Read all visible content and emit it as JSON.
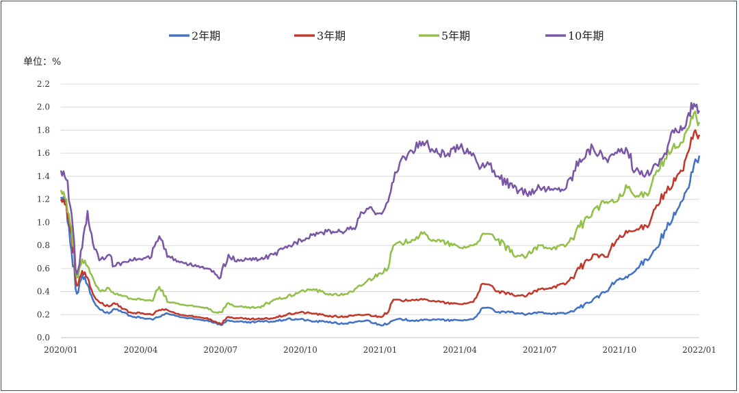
{
  "chart_data": {
    "type": "line",
    "title": "",
    "xlabel": "",
    "ylabel": "单位：%",
    "ylim": [
      0,
      2.2
    ],
    "yticks": [
      "0.0",
      "0.2",
      "0.4",
      "0.6",
      "0.8",
      "1.0",
      "1.2",
      "1.4",
      "1.6",
      "1.8",
      "2.0",
      "2.2"
    ],
    "xticks": [
      "2020/01",
      "2020/04",
      "2020/07",
      "2020/10",
      "2021/01",
      "2021/04",
      "2021/07",
      "2021/10",
      "2022/01"
    ],
    "xrange_months": [
      0,
      24
    ],
    "grid": "horizontal",
    "legend": "top",
    "series": [
      {
        "name": "2年期",
        "color": "#4472C4",
        "points": [
          [
            0,
            1.22
          ],
          [
            0.2,
            1.18
          ],
          [
            0.4,
            0.75
          ],
          [
            0.6,
            0.38
          ],
          [
            0.8,
            0.55
          ],
          [
            1.0,
            0.46
          ],
          [
            1.2,
            0.33
          ],
          [
            1.5,
            0.24
          ],
          [
            1.8,
            0.21
          ],
          [
            2.0,
            0.25
          ],
          [
            2.3,
            0.22
          ],
          [
            2.6,
            0.19
          ],
          [
            3.0,
            0.17
          ],
          [
            3.4,
            0.16
          ],
          [
            3.7,
            0.18
          ],
          [
            4.0,
            0.21
          ],
          [
            4.3,
            0.19
          ],
          [
            4.7,
            0.17
          ],
          [
            5.0,
            0.16
          ],
          [
            5.5,
            0.15
          ],
          [
            5.8,
            0.13
          ],
          [
            6.0,
            0.11
          ],
          [
            6.3,
            0.15
          ],
          [
            6.6,
            0.14
          ],
          [
            7.0,
            0.13
          ],
          [
            7.5,
            0.14
          ],
          [
            8.0,
            0.14
          ],
          [
            8.5,
            0.16
          ],
          [
            9.0,
            0.16
          ],
          [
            9.5,
            0.14
          ],
          [
            10.0,
            0.14
          ],
          [
            10.5,
            0.12
          ],
          [
            11.0,
            0.13
          ],
          [
            11.5,
            0.15
          ],
          [
            12.0,
            0.11
          ],
          [
            12.3,
            0.12
          ],
          [
            12.5,
            0.15
          ],
          [
            12.8,
            0.16
          ],
          [
            13.2,
            0.15
          ],
          [
            13.6,
            0.15
          ],
          [
            14.0,
            0.16
          ],
          [
            14.5,
            0.15
          ],
          [
            15.0,
            0.15
          ],
          [
            15.5,
            0.16
          ],
          [
            15.8,
            0.25
          ],
          [
            16.1,
            0.26
          ],
          [
            16.4,
            0.22
          ],
          [
            17.0,
            0.22
          ],
          [
            17.5,
            0.2
          ],
          [
            18.0,
            0.22
          ],
          [
            18.5,
            0.21
          ],
          [
            19.0,
            0.21
          ],
          [
            19.5,
            0.26
          ],
          [
            20.0,
            0.33
          ],
          [
            20.5,
            0.4
          ],
          [
            20.9,
            0.5
          ],
          [
            21.3,
            0.52
          ],
          [
            21.6,
            0.58
          ],
          [
            22.0,
            0.68
          ],
          [
            22.4,
            0.78
          ],
          [
            22.7,
            0.93
          ],
          [
            23.0,
            1.03
          ],
          [
            23.2,
            1.12
          ],
          [
            23.4,
            1.2
          ],
          [
            23.6,
            1.3
          ],
          [
            23.8,
            1.5
          ],
          [
            24.0,
            1.58
          ]
        ]
      },
      {
        "name": "3年期",
        "color": "#C0392B",
        "points": [
          [
            0,
            1.2
          ],
          [
            0.2,
            1.15
          ],
          [
            0.4,
            0.9
          ],
          [
            0.6,
            0.45
          ],
          [
            0.8,
            0.58
          ],
          [
            1.0,
            0.52
          ],
          [
            1.2,
            0.38
          ],
          [
            1.5,
            0.3
          ],
          [
            1.8,
            0.27
          ],
          [
            2.0,
            0.3
          ],
          [
            2.3,
            0.25
          ],
          [
            2.6,
            0.22
          ],
          [
            3.0,
            0.21
          ],
          [
            3.4,
            0.2
          ],
          [
            3.7,
            0.24
          ],
          [
            4.0,
            0.24
          ],
          [
            4.3,
            0.21
          ],
          [
            4.7,
            0.19
          ],
          [
            5.0,
            0.18
          ],
          [
            5.5,
            0.17
          ],
          [
            5.8,
            0.14
          ],
          [
            6.0,
            0.12
          ],
          [
            6.3,
            0.18
          ],
          [
            6.6,
            0.17
          ],
          [
            7.0,
            0.16
          ],
          [
            7.5,
            0.16
          ],
          [
            8.0,
            0.17
          ],
          [
            8.5,
            0.2
          ],
          [
            9.0,
            0.22
          ],
          [
            9.5,
            0.21
          ],
          [
            10.0,
            0.19
          ],
          [
            10.5,
            0.18
          ],
          [
            11.0,
            0.19
          ],
          [
            11.5,
            0.2
          ],
          [
            12.0,
            0.18
          ],
          [
            12.3,
            0.22
          ],
          [
            12.5,
            0.33
          ],
          [
            12.8,
            0.32
          ],
          [
            13.2,
            0.33
          ],
          [
            13.6,
            0.33
          ],
          [
            14.0,
            0.32
          ],
          [
            14.5,
            0.3
          ],
          [
            15.0,
            0.29
          ],
          [
            15.5,
            0.31
          ],
          [
            15.8,
            0.46
          ],
          [
            16.1,
            0.46
          ],
          [
            16.4,
            0.4
          ],
          [
            17.0,
            0.37
          ],
          [
            17.5,
            0.36
          ],
          [
            18.0,
            0.42
          ],
          [
            18.5,
            0.44
          ],
          [
            19.0,
            0.47
          ],
          [
            19.5,
            0.6
          ],
          [
            20.0,
            0.72
          ],
          [
            20.5,
            0.7
          ],
          [
            20.9,
            0.85
          ],
          [
            21.3,
            0.91
          ],
          [
            21.6,
            0.93
          ],
          [
            22.0,
            0.97
          ],
          [
            22.4,
            1.15
          ],
          [
            22.7,
            1.26
          ],
          [
            23.0,
            1.32
          ],
          [
            23.2,
            1.42
          ],
          [
            23.4,
            1.45
          ],
          [
            23.6,
            1.62
          ],
          [
            23.8,
            1.78
          ],
          [
            24.0,
            1.76
          ]
        ]
      },
      {
        "name": "5年期",
        "color": "#92C04B",
        "points": [
          [
            0,
            1.28
          ],
          [
            0.2,
            1.2
          ],
          [
            0.4,
            0.95
          ],
          [
            0.6,
            0.52
          ],
          [
            0.8,
            0.68
          ],
          [
            1.0,
            0.62
          ],
          [
            1.2,
            0.52
          ],
          [
            1.5,
            0.4
          ],
          [
            1.8,
            0.43
          ],
          [
            2.0,
            0.38
          ],
          [
            2.3,
            0.36
          ],
          [
            2.6,
            0.34
          ],
          [
            3.0,
            0.33
          ],
          [
            3.4,
            0.32
          ],
          [
            3.7,
            0.44
          ],
          [
            4.0,
            0.31
          ],
          [
            4.3,
            0.3
          ],
          [
            4.7,
            0.28
          ],
          [
            5.0,
            0.27
          ],
          [
            5.5,
            0.26
          ],
          [
            5.8,
            0.22
          ],
          [
            6.0,
            0.22
          ],
          [
            6.3,
            0.3
          ],
          [
            6.6,
            0.27
          ],
          [
            7.0,
            0.26
          ],
          [
            7.5,
            0.26
          ],
          [
            8.0,
            0.33
          ],
          [
            8.5,
            0.35
          ],
          [
            9.0,
            0.4
          ],
          [
            9.5,
            0.42
          ],
          [
            10.0,
            0.38
          ],
          [
            10.5,
            0.37
          ],
          [
            11.0,
            0.4
          ],
          [
            11.5,
            0.49
          ],
          [
            12.0,
            0.56
          ],
          [
            12.3,
            0.6
          ],
          [
            12.5,
            0.8
          ],
          [
            12.8,
            0.82
          ],
          [
            13.2,
            0.85
          ],
          [
            13.6,
            0.9
          ],
          [
            14.0,
            0.85
          ],
          [
            14.5,
            0.82
          ],
          [
            15.0,
            0.78
          ],
          [
            15.5,
            0.8
          ],
          [
            15.8,
            0.88
          ],
          [
            16.1,
            0.9
          ],
          [
            16.4,
            0.85
          ],
          [
            17.0,
            0.72
          ],
          [
            17.5,
            0.7
          ],
          [
            18.0,
            0.8
          ],
          [
            18.5,
            0.78
          ],
          [
            19.0,
            0.8
          ],
          [
            19.5,
            0.96
          ],
          [
            20.0,
            1.1
          ],
          [
            20.5,
            1.18
          ],
          [
            20.9,
            1.18
          ],
          [
            21.3,
            1.3
          ],
          [
            21.6,
            1.22
          ],
          [
            22.0,
            1.25
          ],
          [
            22.4,
            1.45
          ],
          [
            22.7,
            1.55
          ],
          [
            23.0,
            1.65
          ],
          [
            23.2,
            1.65
          ],
          [
            23.4,
            1.7
          ],
          [
            23.6,
            1.82
          ],
          [
            23.8,
            1.95
          ],
          [
            24.0,
            1.87
          ]
        ]
      },
      {
        "name": "10年期",
        "color": "#7B58A6",
        "points": [
          [
            0,
            1.45
          ],
          [
            0.2,
            1.37
          ],
          [
            0.4,
            1.08
          ],
          [
            0.6,
            0.55
          ],
          [
            0.8,
            0.78
          ],
          [
            1.0,
            1.1
          ],
          [
            1.2,
            0.82
          ],
          [
            1.5,
            0.68
          ],
          [
            1.8,
            0.72
          ],
          [
            2.0,
            0.62
          ],
          [
            2.3,
            0.65
          ],
          [
            2.6,
            0.68
          ],
          [
            3.0,
            0.68
          ],
          [
            3.4,
            0.7
          ],
          [
            3.7,
            0.88
          ],
          [
            4.0,
            0.7
          ],
          [
            4.3,
            0.68
          ],
          [
            4.7,
            0.65
          ],
          [
            5.0,
            0.62
          ],
          [
            5.5,
            0.6
          ],
          [
            5.8,
            0.55
          ],
          [
            6.0,
            0.52
          ],
          [
            6.3,
            0.72
          ],
          [
            6.6,
            0.66
          ],
          [
            7.0,
            0.68
          ],
          [
            7.5,
            0.68
          ],
          [
            8.0,
            0.72
          ],
          [
            8.5,
            0.78
          ],
          [
            9.0,
            0.85
          ],
          [
            9.5,
            0.9
          ],
          [
            10.0,
            0.92
          ],
          [
            10.5,
            0.92
          ],
          [
            11.0,
            0.95
          ],
          [
            11.5,
            1.12
          ],
          [
            12.0,
            1.08
          ],
          [
            12.3,
            1.18
          ],
          [
            12.5,
            1.35
          ],
          [
            12.8,
            1.55
          ],
          [
            13.2,
            1.62
          ],
          [
            13.6,
            1.7
          ],
          [
            14.0,
            1.62
          ],
          [
            14.5,
            1.58
          ],
          [
            15.0,
            1.65
          ],
          [
            15.5,
            1.6
          ],
          [
            15.8,
            1.48
          ],
          [
            16.1,
            1.5
          ],
          [
            16.4,
            1.4
          ],
          [
            17.0,
            1.3
          ],
          [
            17.5,
            1.25
          ],
          [
            18.0,
            1.3
          ],
          [
            18.5,
            1.28
          ],
          [
            19.0,
            1.3
          ],
          [
            19.5,
            1.55
          ],
          [
            20.0,
            1.65
          ],
          [
            20.5,
            1.55
          ],
          [
            20.9,
            1.6
          ],
          [
            21.3,
            1.62
          ],
          [
            21.6,
            1.45
          ],
          [
            22.0,
            1.42
          ],
          [
            22.4,
            1.5
          ],
          [
            22.7,
            1.6
          ],
          [
            23.0,
            1.8
          ],
          [
            23.2,
            1.78
          ],
          [
            23.4,
            1.82
          ],
          [
            23.6,
            1.95
          ],
          [
            23.8,
            2.03
          ],
          [
            24.0,
            1.97
          ]
        ]
      }
    ]
  }
}
